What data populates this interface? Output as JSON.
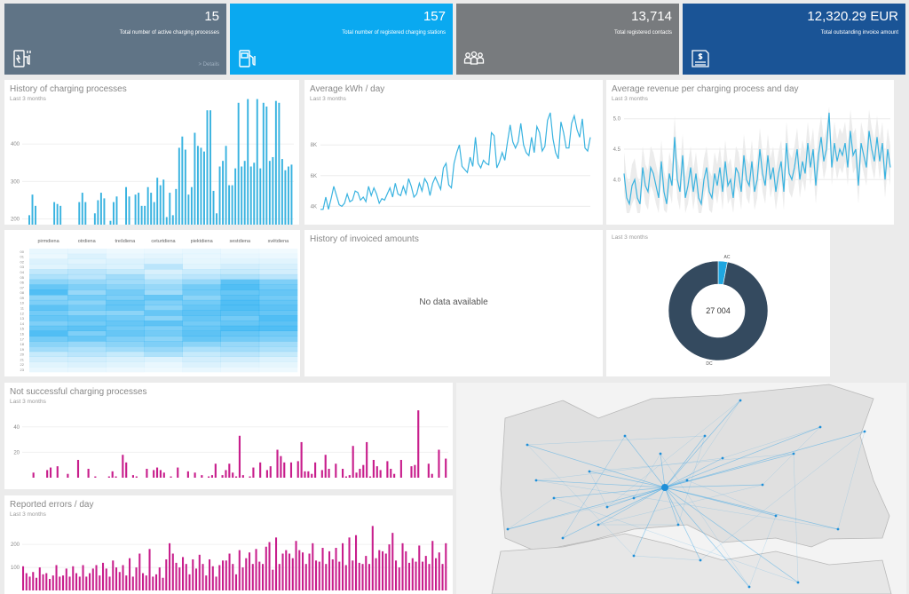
{
  "kpis": [
    {
      "value": "15",
      "label": "Total number of active charging processes",
      "details": "> Details",
      "color": "#607486",
      "icon": "charging-station-icon"
    },
    {
      "value": "157",
      "label": "Total number of registered charging stations",
      "color": "#0aa9f0",
      "icon": "fuel-pump-icon"
    },
    {
      "value": "13,714",
      "label": "Total registered contacts",
      "color": "#787b7e",
      "icon": "people-icon"
    },
    {
      "value": "12,320.29 EUR",
      "label": "Total outstanding invoice amount",
      "color": "#1a5496",
      "icon": "invoice-icon"
    }
  ],
  "history_charging": {
    "title": "History of charging processes",
    "subtitle": "Last 3 months",
    "chart_data": {
      "type": "bar",
      "ylim": [
        0,
        500
      ],
      "yticks": [
        "100",
        "200",
        "300",
        "400"
      ],
      "color": "#39b3e0",
      "values": [
        180,
        165,
        210,
        265,
        235,
        150,
        140,
        145,
        155,
        150,
        245,
        240,
        235,
        155,
        145,
        145,
        150,
        160,
        245,
        270,
        245,
        160,
        155,
        215,
        250,
        270,
        255,
        160,
        195,
        245,
        260,
        160,
        175,
        285,
        260,
        175,
        265,
        270,
        235,
        235,
        285,
        270,
        245,
        310,
        290,
        305,
        205,
        270,
        210,
        280,
        390,
        420,
        385,
        265,
        285,
        430,
        395,
        390,
        380,
        490,
        490,
        275,
        215,
        340,
        355,
        395,
        290,
        290,
        335,
        510,
        340,
        355,
        520,
        340,
        350,
        520,
        335,
        510,
        500,
        355,
        365,
        515,
        510,
        360,
        330,
        340,
        345
      ]
    }
  },
  "kwh_day": {
    "title": "Average kWh / day",
    "subtitle": "Last 3 months",
    "chart_data": {
      "type": "line",
      "ylim": [
        3.5,
        10.5
      ],
      "yticks": [
        "4K",
        "6K",
        "8K"
      ],
      "color": "#39b3e0",
      "values": [
        3.8,
        3.8,
        4.6,
        3.8,
        4.5,
        5.3,
        4.7,
        4.1,
        4.0,
        4.2,
        4.8,
        4.3,
        4.4,
        5.0,
        4.9,
        4.4,
        4.6,
        4.3,
        5.3,
        4.7,
        5.2,
        4.8,
        4.2,
        4.5,
        4.4,
        4.8,
        5.2,
        4.6,
        5.5,
        4.8,
        4.7,
        5.3,
        4.8,
        5.8,
        5.3,
        4.6,
        4.8,
        5.5,
        5.0,
        5.8,
        5.5,
        4.7,
        5.5,
        5.9,
        5.5,
        5.1,
        6.5,
        6.8,
        5.4,
        5.2,
        6.8,
        7.5,
        8.0,
        6.6,
        6.4,
        6.2,
        7.2,
        6.6,
        8.5,
        6.8,
        6.5,
        7.0,
        6.8,
        6.7,
        8.8,
        8.6,
        6.5,
        6.9,
        7.5,
        7.0,
        8.2,
        9.3,
        8.2,
        7.8,
        8.2,
        9.4,
        8.0,
        7.5,
        7.3,
        8.5,
        7.5,
        9.2,
        8.8,
        7.6,
        7.9,
        9.6,
        10.1,
        8.4,
        7.5,
        7.1,
        9.5,
        8.8,
        7.8,
        7.8,
        9.4,
        9.9,
        9.0,
        8.5,
        9.7,
        7.8,
        7.6,
        8.5
      ]
    }
  },
  "revenue": {
    "title": "Average revenue per charging process and day",
    "subtitle": "Last 3 months",
    "chart_data": {
      "type": "line",
      "ylim": [
        3.45,
        5.2
      ],
      "yticks": [
        "4.0",
        "4.5",
        "5.0"
      ],
      "color": "#39b3e0",
      "band_color": "#ececec",
      "values": [
        4.1,
        3.7,
        3.6,
        3.9,
        4.0,
        3.7,
        3.6,
        4.2,
        3.9,
        3.8,
        4.2,
        4.1,
        3.9,
        3.7,
        4.3,
        3.8,
        3.6,
        4.1,
        3.9,
        4.7,
        4.0,
        3.8,
        4.4,
        3.7,
        3.9,
        4.2,
        3.8,
        4.1,
        3.7,
        3.6,
        4.0,
        4.2,
        3.8,
        3.7,
        4.1,
        3.9,
        4.2,
        3.8,
        4.3,
        3.9,
        4.0,
        3.7,
        4.2,
        4.1,
        3.8,
        4.4,
        4.0,
        3.9,
        4.3,
        3.8,
        4.0,
        4.5,
        4.1,
        3.9,
        4.4,
        4.0,
        4.2,
        3.8,
        4.1,
        4.3,
        3.8,
        4.6,
        4.1,
        4.0,
        4.2,
        4.5,
        4.0,
        4.3,
        4.1,
        4.6,
        4.2,
        4.5,
        3.9,
        4.4,
        4.7,
        4.3,
        4.5,
        5.1,
        4.2,
        4.6,
        4.3,
        4.5,
        4.4,
        4.6,
        4.2,
        4.8,
        4.4,
        4.5,
        3.9,
        4.6,
        4.4,
        4.2,
        4.8,
        4.5,
        4.3,
        4.7,
        4.3,
        4.6,
        4.0,
        4.5,
        4.2
      ]
    }
  },
  "heatmap": {
    "chart_data": {
      "type": "heatmap",
      "color": "#0aa3ef",
      "columns": [
        "pirmdiena",
        "otrdiena",
        "trešdiena",
        "ceturtdiena",
        "piektdiena",
        "sestdiena",
        "svētdiena"
      ],
      "rows": [
        "00",
        "01",
        "02",
        "03",
        "04",
        "05",
        "06",
        "07",
        "08",
        "09",
        "10",
        "11",
        "12",
        "13",
        "14",
        "15",
        "16",
        "17",
        "18",
        "19",
        "20",
        "21",
        "22",
        "23"
      ],
      "values": [
        [
          0.05,
          0.05,
          0.03,
          0.04,
          0.05,
          0.03,
          0.02
        ],
        [
          0.04,
          0.1,
          0.05,
          0.07,
          0.05,
          0.05,
          0.04
        ],
        [
          0.1,
          0.08,
          0.1,
          0.1,
          0.06,
          0.08,
          0.08
        ],
        [
          0.08,
          0.12,
          0.1,
          0.25,
          0.08,
          0.15,
          0.12
        ],
        [
          0.22,
          0.25,
          0.2,
          0.12,
          0.18,
          0.2,
          0.15
        ],
        [
          0.3,
          0.25,
          0.35,
          0.18,
          0.25,
          0.3,
          0.25
        ],
        [
          0.45,
          0.4,
          0.35,
          0.3,
          0.4,
          0.65,
          0.5
        ],
        [
          0.6,
          0.5,
          0.45,
          0.4,
          0.55,
          0.7,
          0.55
        ],
        [
          0.7,
          0.4,
          0.55,
          0.35,
          0.55,
          0.6,
          0.6
        ],
        [
          0.45,
          0.55,
          0.5,
          0.6,
          0.45,
          0.65,
          0.55
        ],
        [
          0.5,
          0.45,
          0.6,
          0.5,
          0.55,
          0.7,
          0.6
        ],
        [
          0.65,
          0.55,
          0.6,
          0.45,
          0.6,
          0.7,
          0.65
        ],
        [
          0.55,
          0.45,
          0.45,
          0.6,
          0.65,
          0.65,
          0.6
        ],
        [
          0.6,
          0.6,
          0.55,
          0.45,
          0.6,
          0.55,
          0.7
        ],
        [
          0.5,
          0.55,
          0.6,
          0.65,
          0.55,
          0.6,
          0.65
        ],
        [
          0.6,
          0.65,
          0.55,
          0.5,
          0.6,
          0.7,
          0.7
        ],
        [
          0.7,
          0.5,
          0.6,
          0.55,
          0.65,
          0.6,
          0.55
        ],
        [
          0.55,
          0.6,
          0.5,
          0.45,
          0.6,
          0.55,
          0.5
        ],
        [
          0.45,
          0.4,
          0.45,
          0.5,
          0.45,
          0.4,
          0.35
        ],
        [
          0.35,
          0.3,
          0.35,
          0.4,
          0.3,
          0.35,
          0.3
        ],
        [
          0.2,
          0.25,
          0.2,
          0.3,
          0.2,
          0.25,
          0.2
        ],
        [
          0.15,
          0.15,
          0.12,
          0.1,
          0.15,
          0.15,
          0.1
        ],
        [
          0.08,
          0.1,
          0.08,
          0.05,
          0.1,
          0.08,
          0.06
        ],
        [
          0.05,
          0.05,
          0.04,
          0.03,
          0.05,
          0.04,
          0.03
        ]
      ]
    }
  },
  "invoiced": {
    "title": "History of invoiced amounts",
    "empty": "No data available"
  },
  "donut": {
    "subtitle": "Last 3 months",
    "center": "27 004",
    "chart_data": {
      "type": "pie",
      "total": 27004,
      "slices": [
        {
          "name": "AC",
          "fraction": 0.03,
          "color": "#1fa6e0"
        },
        {
          "name": "DC",
          "fraction": 0.97,
          "color": "#344a5f"
        }
      ]
    }
  },
  "unsuccessful": {
    "title": "Not successful charging processes",
    "subtitle": "Last 3 months",
    "chart_data": {
      "type": "bar",
      "ylim": [
        0,
        58
      ],
      "yticks": [
        "20",
        "40"
      ],
      "color": "#c81e8c",
      "values": [
        0,
        0,
        0,
        4,
        0,
        0,
        0,
        6,
        8,
        0,
        9,
        0,
        0,
        3,
        0,
        0,
        14,
        0,
        0,
        7,
        0,
        1,
        0,
        0,
        0,
        1,
        5,
        1,
        0,
        18,
        12,
        0,
        2,
        1,
        0,
        0,
        7,
        0,
        6,
        8,
        6,
        4,
        0,
        1,
        0,
        8,
        0,
        0,
        5,
        0,
        4,
        0,
        2,
        0,
        1,
        2,
        11,
        0,
        2,
        6,
        11,
        4,
        1,
        33,
        2,
        0,
        1,
        8,
        0,
        12,
        0,
        6,
        9,
        0,
        22,
        17,
        12,
        0,
        12,
        0,
        13,
        28,
        5,
        5,
        3,
        12,
        0,
        6,
        18,
        7,
        0,
        11,
        0,
        7,
        1,
        2,
        25,
        4,
        7,
        10,
        28,
        1,
        14,
        9,
        6,
        0,
        13,
        7,
        3,
        0,
        14,
        0,
        0,
        9,
        10,
        53,
        0,
        0,
        11,
        3,
        0,
        22,
        0,
        15
      ]
    }
  },
  "errors": {
    "title": "Reported errors / day",
    "subtitle": "Last 3 months",
    "chart_data": {
      "type": "bar",
      "ylim": [
        0,
        320
      ],
      "yticks": [
        "100",
        "200"
      ],
      "color": "#c81e8c",
      "values": [
        105,
        75,
        60,
        80,
        55,
        100,
        70,
        75,
        50,
        65,
        110,
        60,
        65,
        95,
        60,
        105,
        75,
        60,
        110,
        60,
        75,
        95,
        110,
        65,
        120,
        95,
        60,
        130,
        100,
        80,
        110,
        65,
        140,
        60,
        100,
        160,
        75,
        65,
        180,
        60,
        70,
        100,
        55,
        135,
        205,
        160,
        120,
        100,
        145,
        115,
        70,
        135,
        95,
        155,
        115,
        65,
        135,
        105,
        60,
        110,
        130,
        130,
        160,
        115,
        70,
        175,
        100,
        140,
        165,
        115,
        180,
        125,
        115,
        190,
        210,
        90,
        230,
        115,
        160,
        175,
        160,
        140,
        215,
        175,
        165,
        115,
        160,
        205,
        130,
        125,
        185,
        115,
        170,
        135,
        185,
        125,
        205,
        110,
        230,
        130,
        240,
        120,
        115,
        150,
        115,
        280,
        140,
        175,
        170,
        160,
        200,
        250,
        130,
        100,
        205,
        170,
        120,
        140,
        125,
        195,
        125,
        150,
        115,
        215,
        140,
        165,
        115,
        205
      ]
    }
  },
  "map": {
    "background": "#f3f3f3",
    "land": "#e0e0e0",
    "line": "#3fa7e6",
    "hub_city": "#1f8fd8"
  }
}
